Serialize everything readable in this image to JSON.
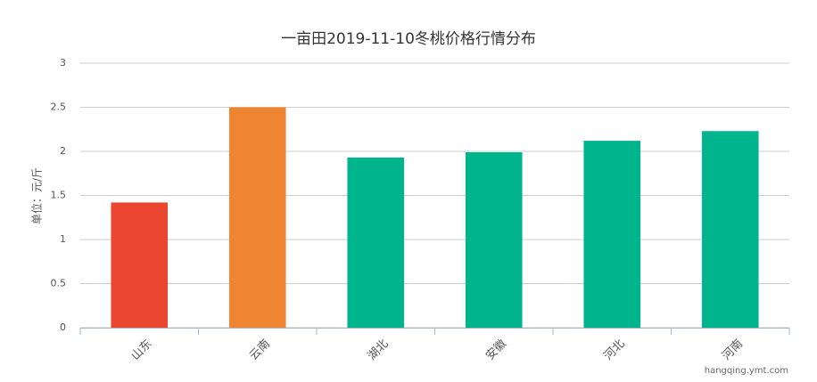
{
  "chart_data": {
    "type": "bar",
    "title": "一亩田2019-11-10冬桃价格行情分布",
    "y_label": "单位：元/斤",
    "categories": [
      "山东",
      "云南",
      "湖北",
      "安徽",
      "河北",
      "河南"
    ],
    "values": [
      1.42,
      2.5,
      1.93,
      1.99,
      2.12,
      2.23
    ],
    "colors": [
      "#ea4630",
      "#ef8431",
      "#00b48c",
      "#00b48c",
      "#00b48c",
      "#00b48c"
    ],
    "ylim": [
      0,
      3
    ],
    "yticks": [
      0,
      0.5,
      1,
      1.5,
      2,
      2.5,
      3
    ],
    "grid": true,
    "watermark": "hangqing.ymt.com"
  }
}
